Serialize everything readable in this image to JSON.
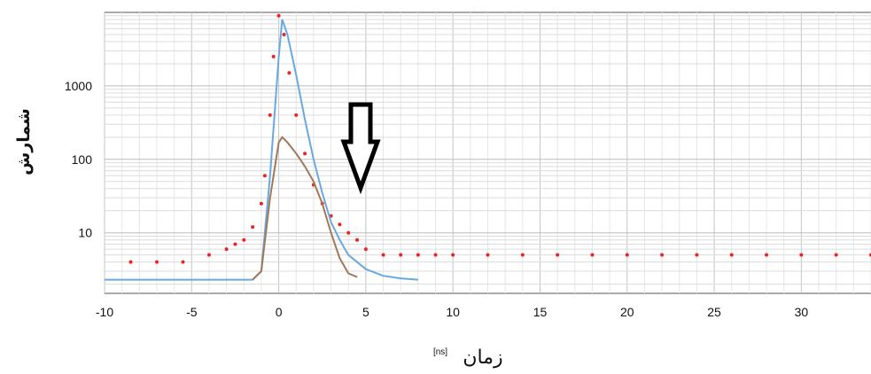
{
  "chart_data": {
    "type": "scatter",
    "title": "",
    "xlabel": "زمان",
    "xlabel_unit": "[ns]",
    "ylabel": "شمارش",
    "xlim": [
      -10,
      34
    ],
    "ylim": [
      1.5,
      10000
    ],
    "yscale": "log",
    "grid": true,
    "x_ticks": [
      -10,
      -5,
      0,
      5,
      10,
      15,
      20,
      25,
      30
    ],
    "x_tick_labels": [
      "-10",
      "-5",
      "0",
      "5",
      "10",
      "15",
      "20",
      "25",
      "30"
    ],
    "y_ticks": [
      10,
      100,
      1000
    ],
    "y_tick_labels": [
      "10",
      "100",
      "1000"
    ],
    "series": [
      {
        "kind": "scatter",
        "color": "#ee2222",
        "x": [
          -8.5,
          -7,
          -5.5,
          -4,
          -3,
          -2.5,
          -2,
          -1.5,
          -1,
          -0.8,
          -0.5,
          -0.3,
          0,
          0.3,
          0.6,
          1,
          1.5,
          2,
          2.5,
          3,
          3.5,
          4,
          4.5,
          5,
          6,
          7,
          8,
          9,
          10,
          12,
          14,
          16,
          18,
          20,
          22,
          24,
          26,
          28,
          30,
          32,
          34
        ],
        "y": [
          4,
          4,
          4,
          5,
          6,
          7,
          8,
          12,
          25,
          60,
          400,
          2500,
          9000,
          5000,
          1500,
          400,
          120,
          45,
          25,
          17,
          13,
          10,
          8,
          6,
          5,
          5,
          5,
          5,
          5,
          5,
          5,
          5,
          5,
          5,
          5,
          5,
          5,
          5,
          5,
          5,
          5
        ]
      },
      {
        "kind": "line",
        "color": "#6aa8e0",
        "x": [
          -10,
          -1.5,
          -1,
          -0.5,
          0,
          0.2,
          0.5,
          1,
          1.5,
          2,
          2.5,
          3,
          3.5,
          4,
          5,
          6,
          7,
          8
        ],
        "y": [
          2.3,
          2.3,
          3,
          60,
          2500,
          8000,
          5000,
          1400,
          350,
          100,
          35,
          14,
          8,
          5,
          3.2,
          2.6,
          2.4,
          2.3
        ]
      },
      {
        "kind": "line",
        "color": "#a0785a",
        "x": [
          -1.5,
          -1,
          -0.5,
          0,
          0.2,
          0.5,
          1,
          1.5,
          2,
          2.5,
          3,
          3.5,
          4,
          4.5
        ],
        "y": [
          2.3,
          3,
          30,
          170,
          200,
          170,
          120,
          80,
          50,
          25,
          10,
          4.5,
          2.8,
          2.5
        ]
      }
    ]
  }
}
